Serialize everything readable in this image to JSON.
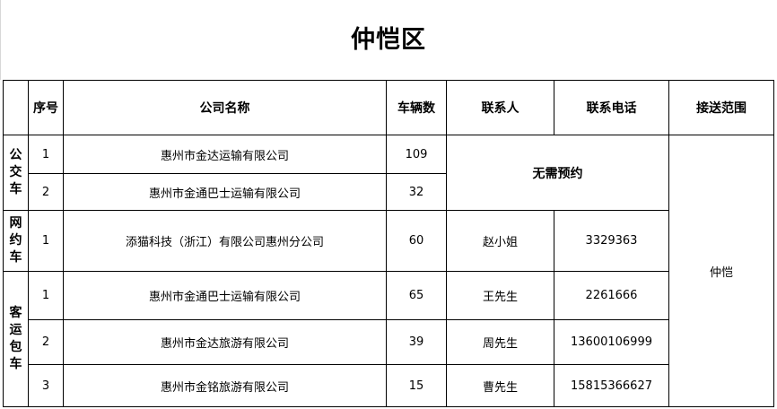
{
  "title": "仲恺区",
  "headers": [
    "",
    "序号",
    "公司名称",
    "车辆数",
    "联系人",
    "联系电话",
    "接送范围"
  ],
  "categories": [
    {
      "label": "公交车",
      "rows": [
        {
          "no": "1",
          "company": "惠州市金达运输有限公司",
          "vehicles": "109"
        },
        {
          "no": "2",
          "company": "惠州市金通巴士运输有限公司",
          "vehicles": "32"
        }
      ],
      "note": "无需预约"
    },
    {
      "label": "网约车",
      "rows": [
        {
          "no": "1",
          "company": "添猫科技（浙江）有限公司惠州分公司",
          "vehicles": "60",
          "contact": "赵小姐",
          "phone": "3329363"
        }
      ]
    },
    {
      "label": "客运包车",
      "rows": [
        {
          "no": "1",
          "company": "惠州市金通巴士运输有限公司",
          "vehicles": "65",
          "contact": "王先生",
          "phone": "2261666"
        },
        {
          "no": "2",
          "company": "惠州市金达旅游有限公司",
          "vehicles": "39",
          "contact": "周先生",
          "phone": "13600106999"
        },
        {
          "no": "3",
          "company": "惠州市金铭旅游有限公司",
          "vehicles": "15",
          "contact": "曹先生",
          "phone": "15815366627"
        }
      ]
    }
  ],
  "scope": "仲恺"
}
